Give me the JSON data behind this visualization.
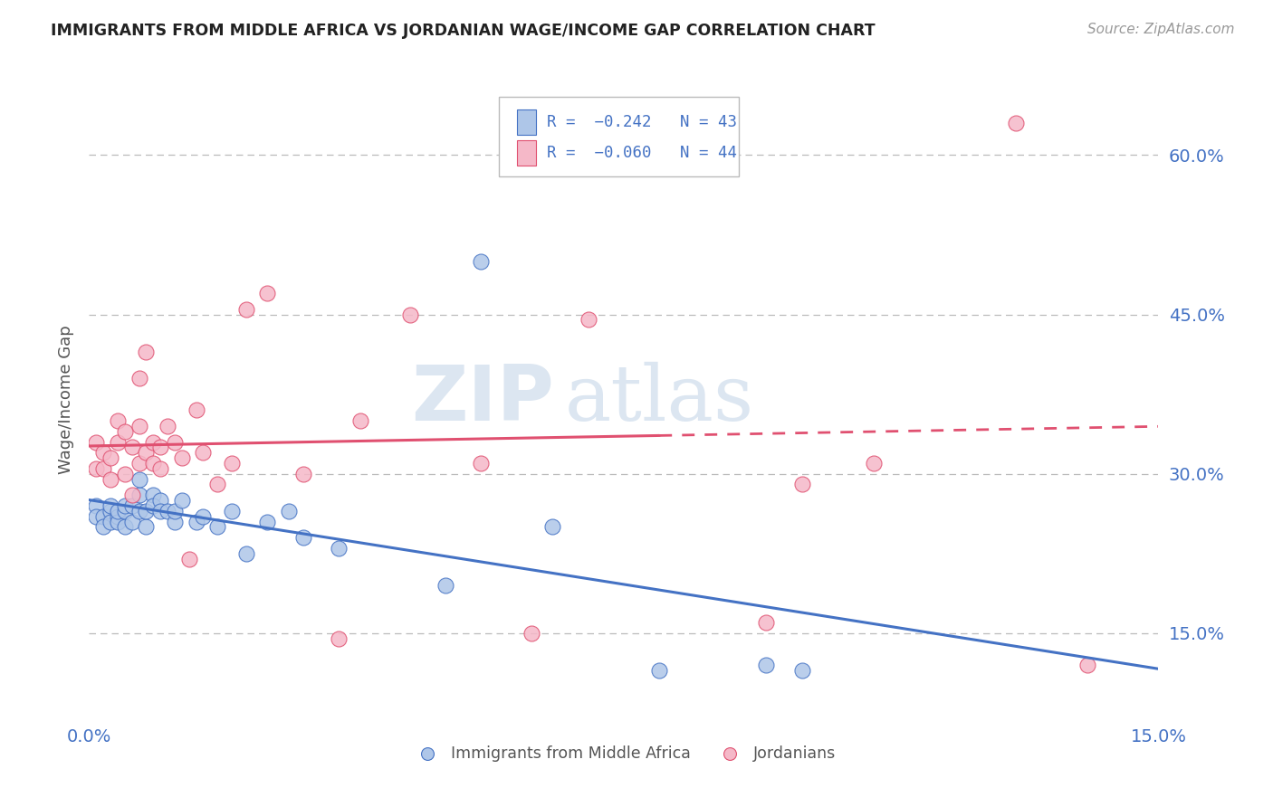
{
  "title": "IMMIGRANTS FROM MIDDLE AFRICA VS JORDANIAN WAGE/INCOME GAP CORRELATION CHART",
  "source": "Source: ZipAtlas.com",
  "ylabel": "Wage/Income Gap",
  "yticks_labels": [
    "15.0%",
    "30.0%",
    "45.0%",
    "60.0%"
  ],
  "ytick_vals": [
    0.15,
    0.3,
    0.45,
    0.6
  ],
  "xtick_labels": [
    "0.0%",
    "15.0%"
  ],
  "xtick_vals": [
    0.0,
    0.15
  ],
  "xmin": 0.0,
  "xmax": 0.15,
  "ymin": 0.07,
  "ymax": 0.67,
  "legend_r1": "-0.242",
  "legend_n1": "43",
  "legend_r2": "-0.060",
  "legend_n2": "44",
  "color_blue_fill": "#aec6e8",
  "color_pink_fill": "#f5b8c8",
  "color_blue_line": "#4472c4",
  "color_pink_line": "#e05070",
  "color_axis_label": "#4472c4",
  "watermark_color": "#dce6f1",
  "blue_x": [
    0.001,
    0.001,
    0.002,
    0.002,
    0.003,
    0.003,
    0.003,
    0.004,
    0.004,
    0.004,
    0.005,
    0.005,
    0.005,
    0.006,
    0.006,
    0.007,
    0.007,
    0.007,
    0.008,
    0.008,
    0.009,
    0.009,
    0.01,
    0.01,
    0.011,
    0.012,
    0.012,
    0.013,
    0.015,
    0.016,
    0.018,
    0.02,
    0.022,
    0.025,
    0.028,
    0.03,
    0.035,
    0.05,
    0.055,
    0.065,
    0.08,
    0.095,
    0.1
  ],
  "blue_y": [
    0.27,
    0.26,
    0.26,
    0.25,
    0.265,
    0.255,
    0.27,
    0.26,
    0.255,
    0.265,
    0.25,
    0.265,
    0.27,
    0.255,
    0.27,
    0.28,
    0.265,
    0.295,
    0.25,
    0.265,
    0.28,
    0.27,
    0.275,
    0.265,
    0.265,
    0.255,
    0.265,
    0.275,
    0.255,
    0.26,
    0.25,
    0.265,
    0.225,
    0.255,
    0.265,
    0.24,
    0.23,
    0.195,
    0.5,
    0.25,
    0.115,
    0.12,
    0.115
  ],
  "pink_x": [
    0.001,
    0.001,
    0.002,
    0.002,
    0.003,
    0.003,
    0.004,
    0.004,
    0.005,
    0.005,
    0.006,
    0.006,
    0.007,
    0.007,
    0.007,
    0.008,
    0.008,
    0.009,
    0.009,
    0.01,
    0.01,
    0.011,
    0.012,
    0.013,
    0.014,
    0.015,
    0.016,
    0.018,
    0.02,
    0.022,
    0.025,
    0.03,
    0.035,
    0.038,
    0.045,
    0.055,
    0.062,
    0.07,
    0.082,
    0.095,
    0.1,
    0.11,
    0.13,
    0.14
  ],
  "pink_y": [
    0.305,
    0.33,
    0.305,
    0.32,
    0.295,
    0.315,
    0.33,
    0.35,
    0.3,
    0.34,
    0.28,
    0.325,
    0.31,
    0.345,
    0.39,
    0.32,
    0.415,
    0.33,
    0.31,
    0.325,
    0.305,
    0.345,
    0.33,
    0.315,
    0.22,
    0.36,
    0.32,
    0.29,
    0.31,
    0.455,
    0.47,
    0.3,
    0.145,
    0.35,
    0.45,
    0.31,
    0.15,
    0.445,
    0.59,
    0.16,
    0.29,
    0.31,
    0.63,
    0.12
  ]
}
